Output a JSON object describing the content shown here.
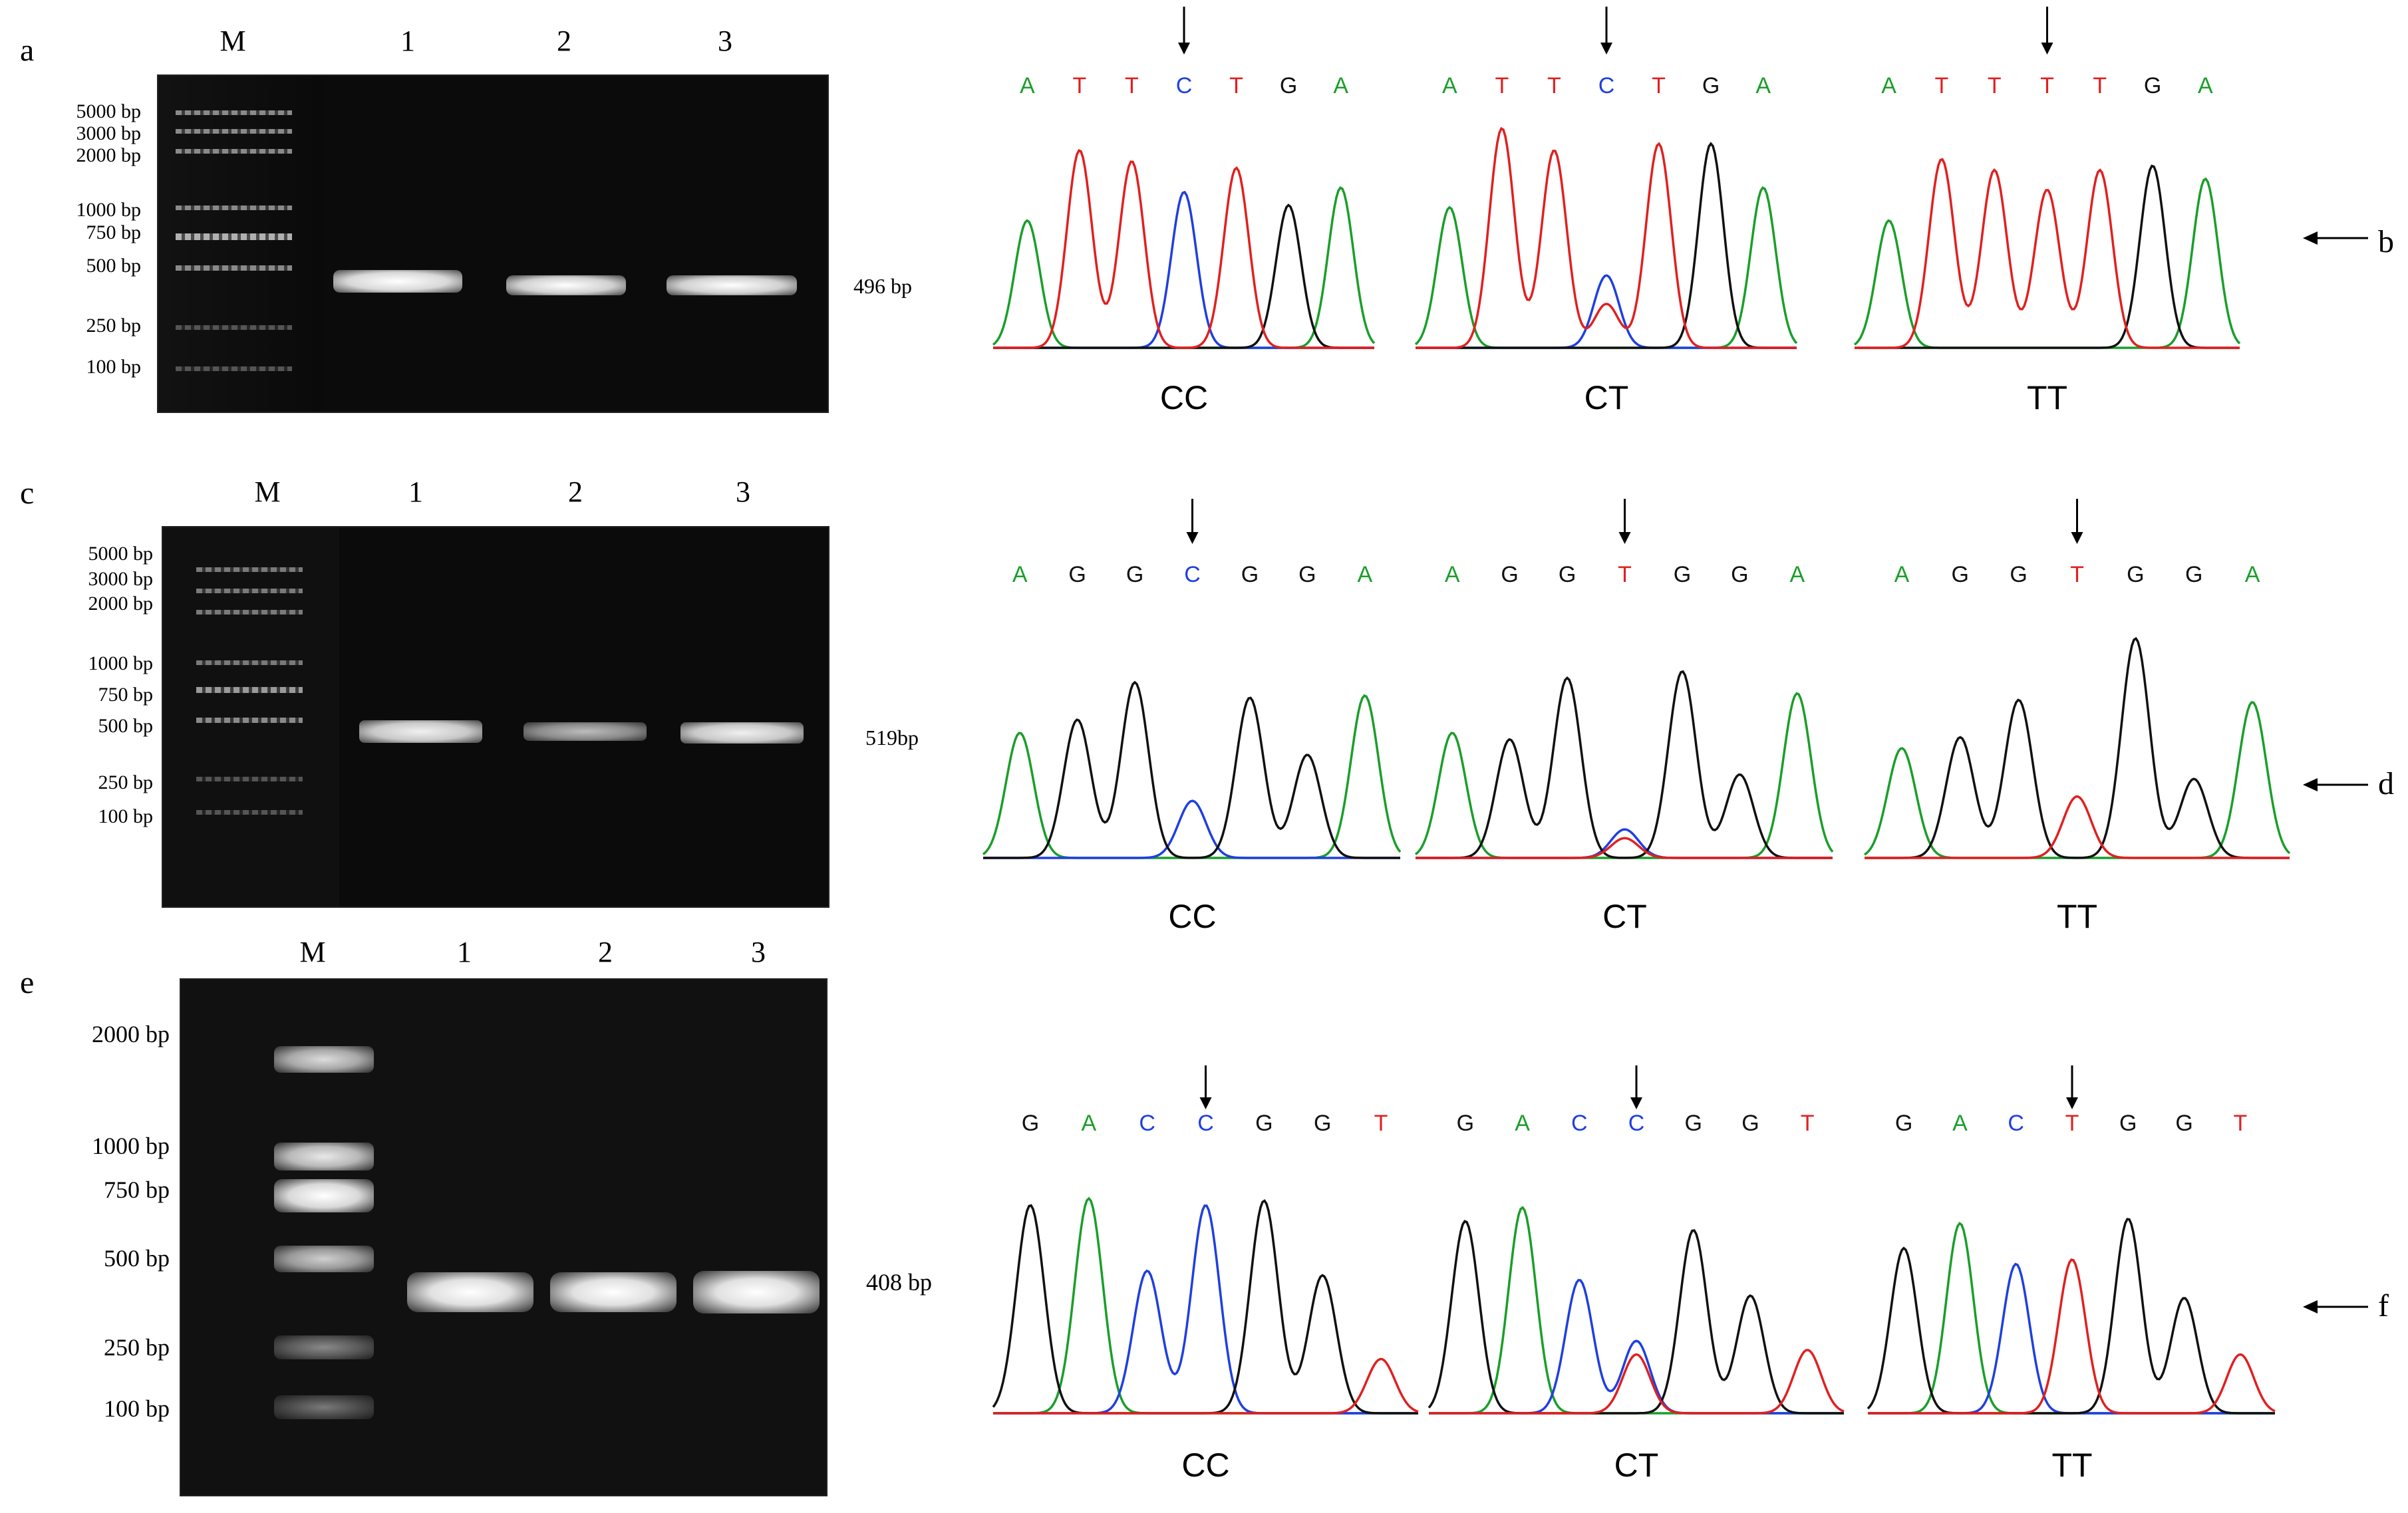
{
  "colors": {
    "A": "#1a9e2a",
    "C": "#1f3fe0",
    "G": "#111111",
    "T": "#e02020",
    "gel_bg": "#0b0b0b",
    "band": "#f2f2f2"
  },
  "panels": {
    "a": "a",
    "b": "b",
    "c": "c",
    "d": "d",
    "e": "e",
    "f": "f"
  },
  "gels": [
    {
      "id": "a",
      "lanes": [
        "M",
        "1",
        "2",
        "3"
      ],
      "ladder": [
        "5000 bp",
        "3000 bp",
        "2000 bp",
        "1000 bp",
        "750 bp",
        "500 bp",
        "250 bp",
        "100 bp"
      ],
      "product": "496 bp"
    },
    {
      "id": "c",
      "lanes": [
        "M",
        "1",
        "2",
        "3"
      ],
      "ladder": [
        "5000 bp",
        "3000 bp",
        "2000 bp",
        "1000 bp",
        "750 bp",
        "500 bp",
        "250 bp",
        "100 bp"
      ],
      "product": "519bp"
    },
    {
      "id": "e",
      "lanes": [
        "M",
        "1",
        "2",
        "3"
      ],
      "ladder": [
        "2000 bp",
        "1000 bp",
        "750 bp",
        "500 bp",
        "250 bp",
        "100 bp"
      ],
      "product": "408 bp"
    }
  ],
  "chromatograms": [
    {
      "row": "b",
      "items": [
        {
          "genotype": "CC",
          "bases": [
            "A",
            "T",
            "T",
            "C",
            "T",
            "G",
            "A"
          ]
        },
        {
          "genotype": "CT",
          "bases": [
            "A",
            "T",
            "T",
            "C",
            "T",
            "G",
            "A"
          ]
        },
        {
          "genotype": "TT",
          "bases": [
            "A",
            "T",
            "T",
            "T",
            "T",
            "G",
            "A"
          ]
        }
      ]
    },
    {
      "row": "d",
      "items": [
        {
          "genotype": "CC",
          "bases": [
            "A",
            "G",
            "G",
            "C",
            "G",
            "G",
            "A"
          ]
        },
        {
          "genotype": "CT",
          "bases": [
            "A",
            "G",
            "G",
            "T",
            "G",
            "G",
            "A"
          ]
        },
        {
          "genotype": "TT",
          "bases": [
            "A",
            "G",
            "G",
            "T",
            "G",
            "G",
            "A"
          ]
        }
      ]
    },
    {
      "row": "f",
      "items": [
        {
          "genotype": "CC",
          "bases": [
            "G",
            "A",
            "C",
            "C",
            "G",
            "G",
            "T"
          ]
        },
        {
          "genotype": "CT",
          "bases": [
            "G",
            "A",
            "C",
            "C",
            "G",
            "G",
            "T"
          ]
        },
        {
          "genotype": "TT",
          "bases": [
            "G",
            "A",
            "C",
            "T",
            "G",
            "G",
            "T"
          ]
        }
      ]
    }
  ]
}
